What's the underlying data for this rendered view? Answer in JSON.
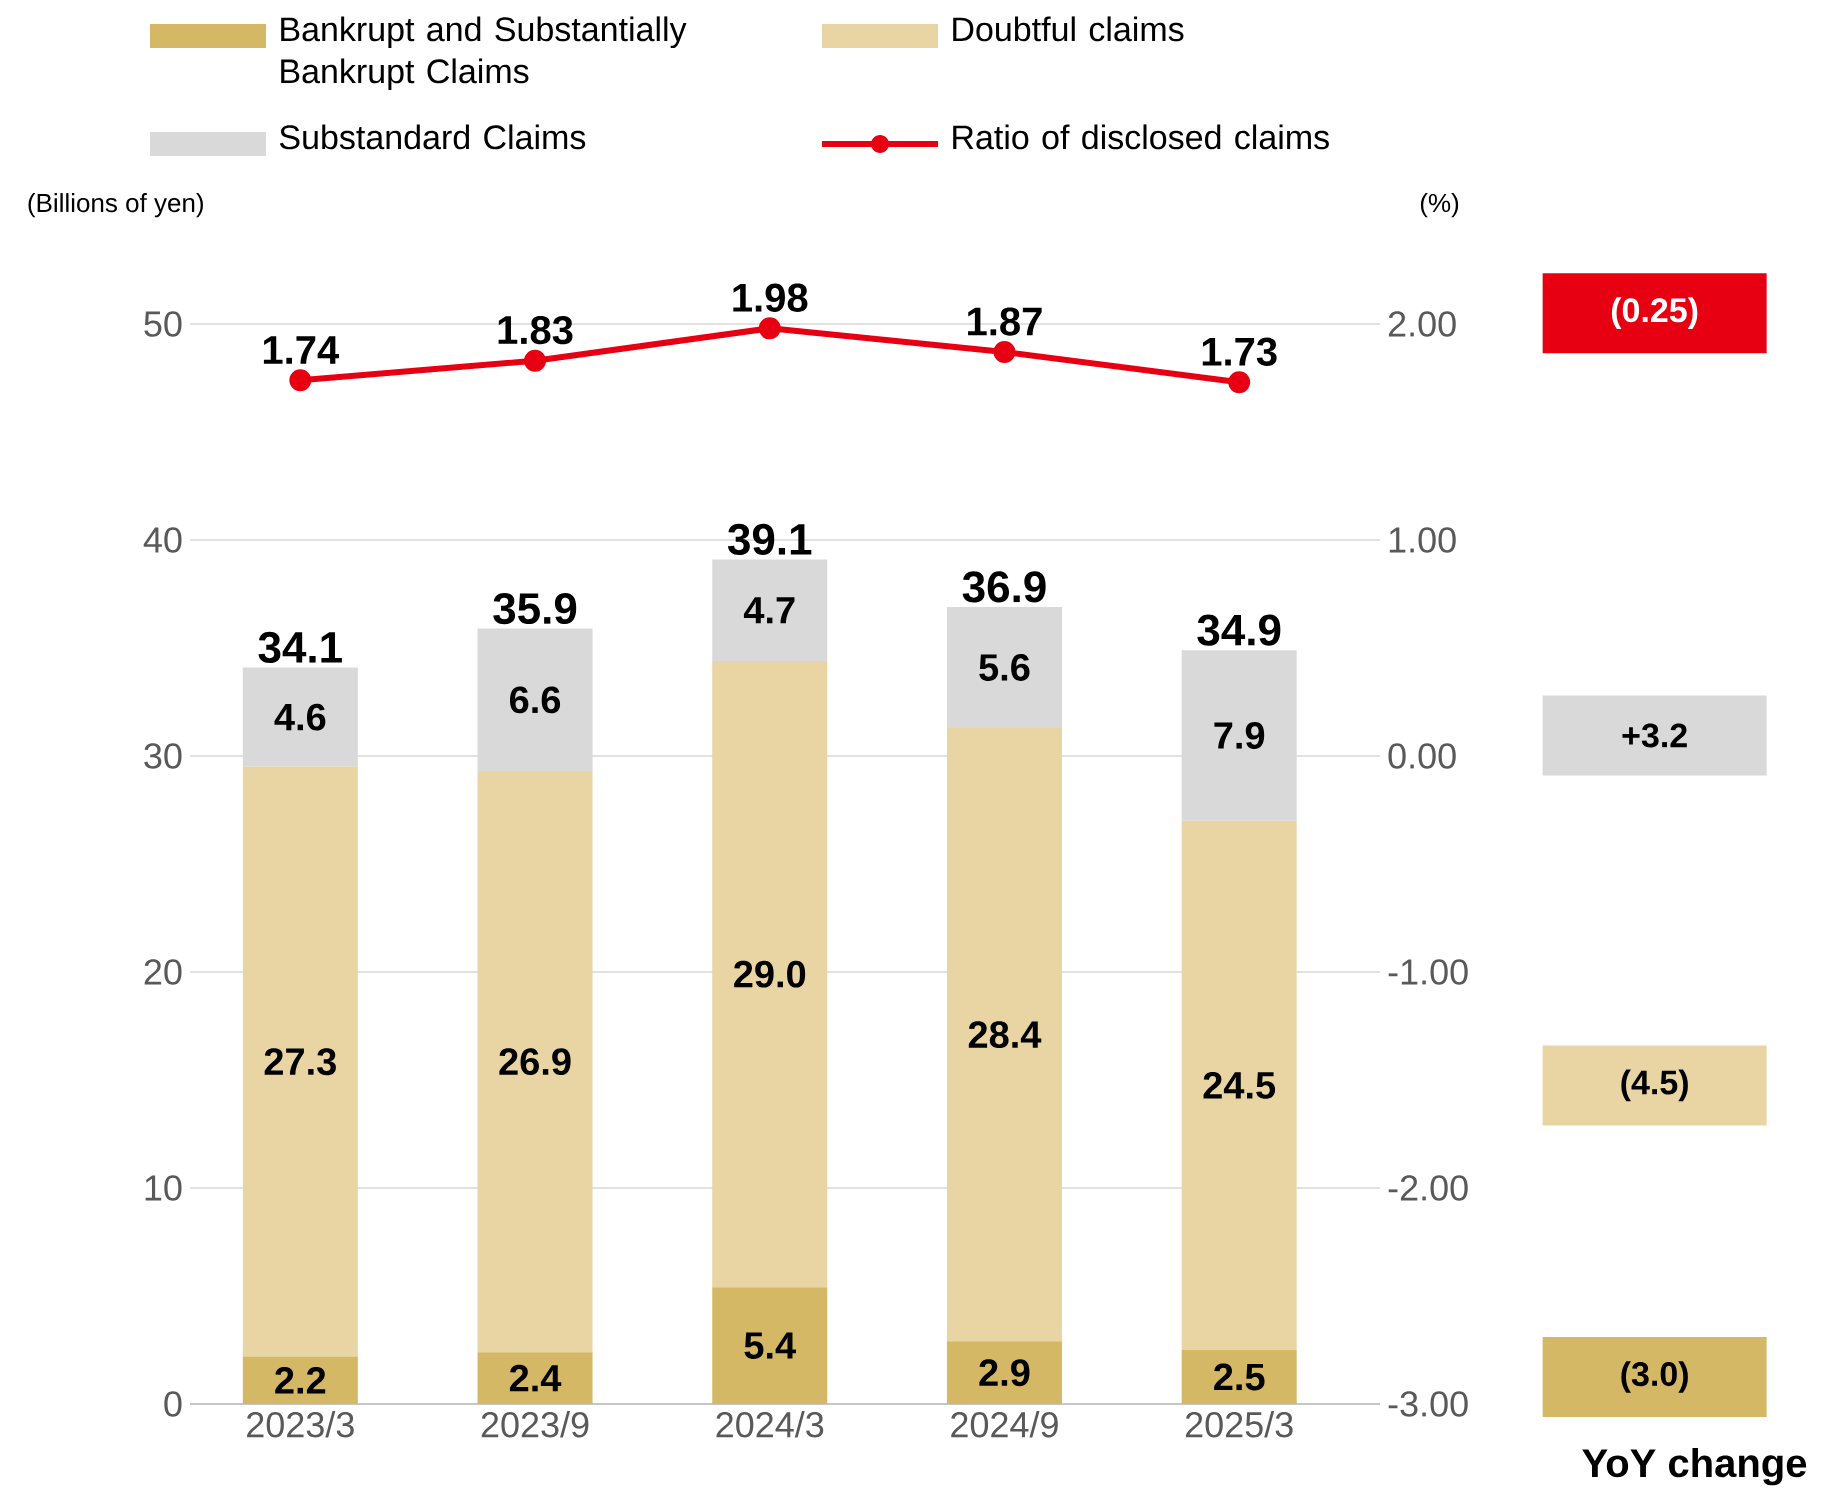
{
  "chart_data": {
    "type": "bar",
    "stacked": true,
    "ylabel": "(Billions of yen)",
    "y2label": "(%)",
    "categories": [
      "2023/3",
      "2023/9",
      "2024/3",
      "2024/9",
      "2025/3"
    ],
    "series": [
      {
        "name": "Bankrupt and Substantially Bankrupt Claims",
        "color": "#d4b865",
        "values": [
          2.2,
          2.4,
          5.4,
          2.9,
          2.5
        ],
        "value_labels": [
          "2.2",
          "2.4",
          "5.4",
          "2.9",
          "2.5"
        ]
      },
      {
        "name": "Doubtful claims",
        "color": "#e8d5a3",
        "values": [
          27.3,
          26.9,
          29.0,
          28.4,
          24.5
        ],
        "value_labels": [
          "27.3",
          "26.9",
          "29.0",
          "28.4",
          "24.5"
        ]
      },
      {
        "name": "Substandard Claims",
        "color": "#d9d9d9",
        "values": [
          4.6,
          6.6,
          4.7,
          5.6,
          7.9
        ],
        "value_labels": [
          "4.6",
          "6.6",
          "4.7",
          "5.6",
          "7.9"
        ]
      },
      {
        "name": "Ratio of disclosed claims",
        "type": "line",
        "axis": "y2",
        "color": "#e60012",
        "marker": "circle",
        "line_style": "solid",
        "values": [
          1.74,
          1.83,
          1.98,
          1.87,
          1.73
        ],
        "value_labels": [
          "1.74",
          "1.83",
          "1.98",
          "1.87",
          "1.73"
        ]
      }
    ],
    "totals": [
      "34.1",
      "35.9",
      "39.1",
      "36.9",
      "34.9"
    ],
    "ylim": [
      0,
      50
    ],
    "yticks": [
      0,
      10,
      20,
      30,
      40,
      50
    ],
    "y2lim": [
      -3,
      2
    ],
    "y2ticks": [
      {
        "value": -3,
        "label": "-3.00"
      },
      {
        "value": -2,
        "label": "-2.00"
      },
      {
        "value": -1,
        "label": "-1.00"
      },
      {
        "value": 0,
        "label": "0.00"
      },
      {
        "value": 1,
        "label": "1.00"
      },
      {
        "value": 2,
        "label": "2.00"
      }
    ],
    "grid": "y",
    "legend": "top",
    "annotations": [
      "(0.25)",
      "+3.2",
      "(4.5)",
      "(3.0)",
      "YoY change"
    ]
  }
}
